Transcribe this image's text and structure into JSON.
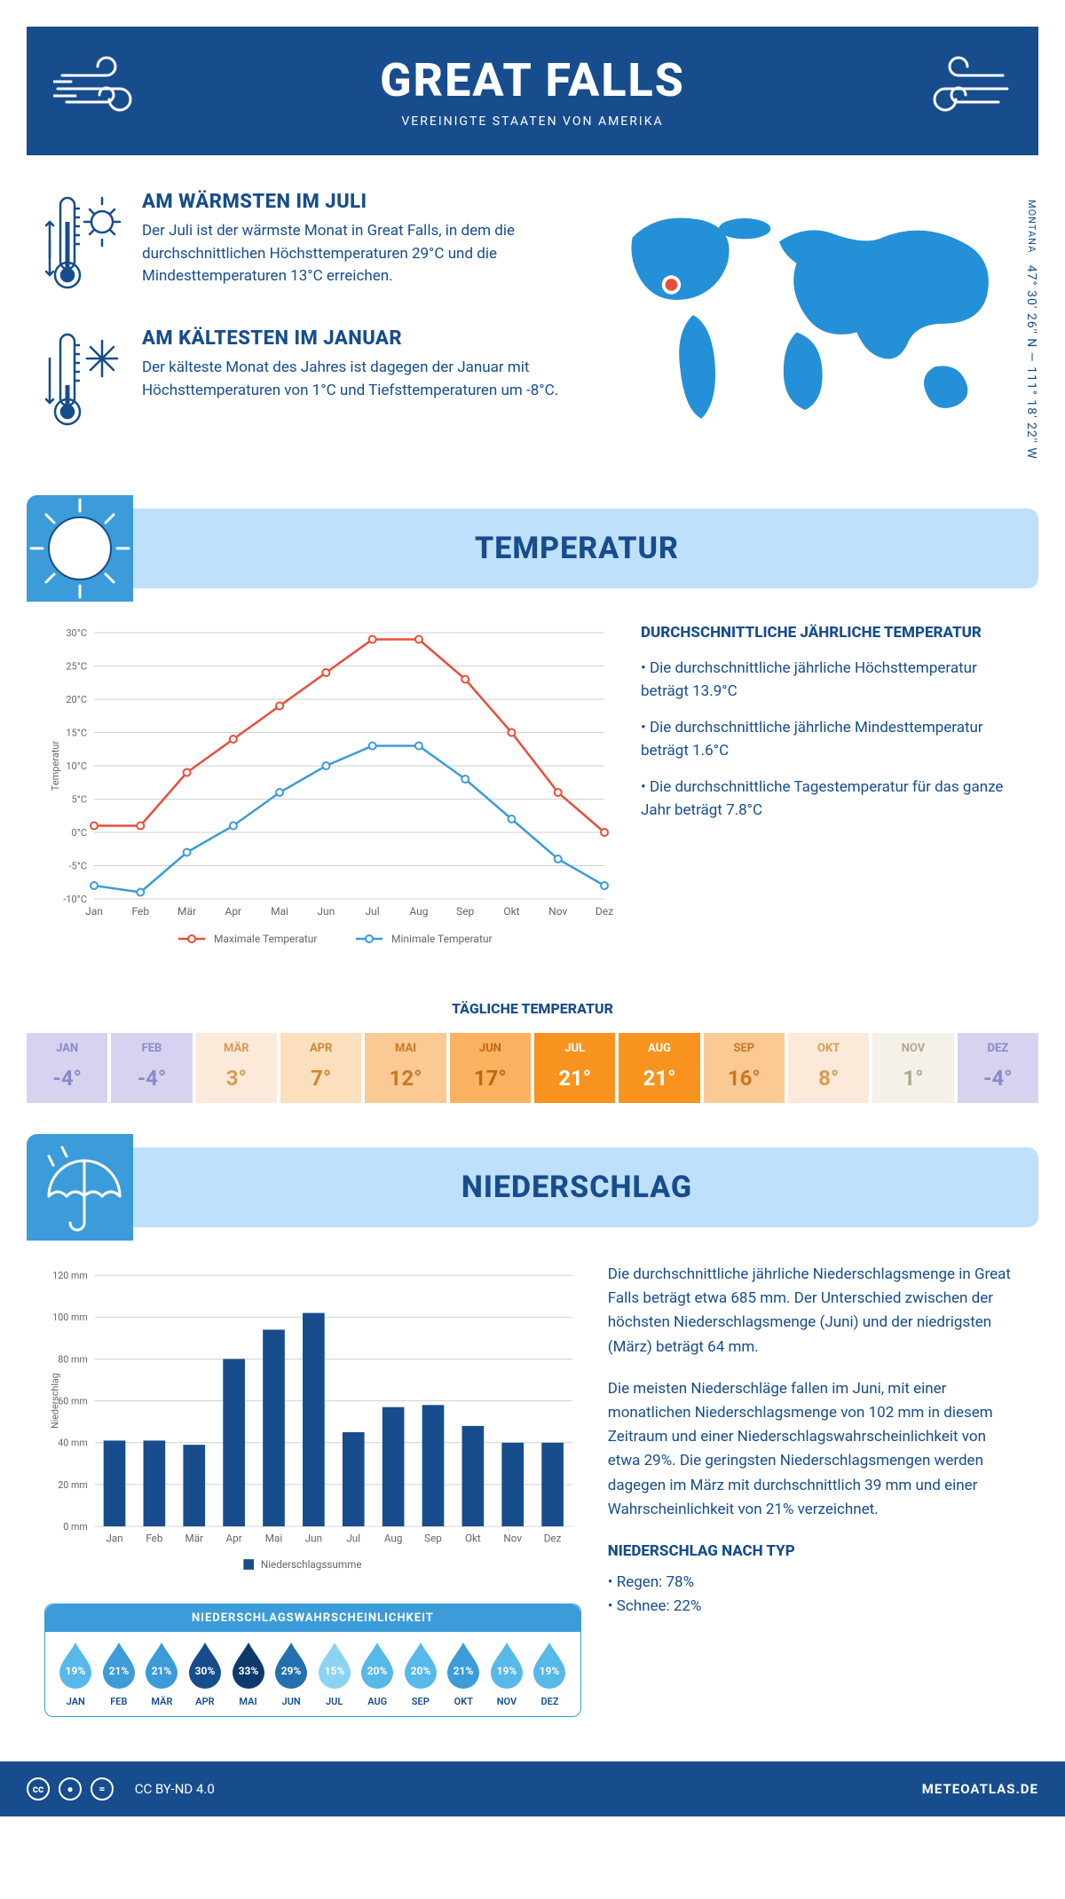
{
  "header": {
    "title": "GREAT FALLS",
    "subtitle": "VEREINIGTE STAATEN VON AMERIKA"
  },
  "coords": {
    "lat": "47° 30' 26'' N",
    "lon": "111° 18' 22'' W",
    "region": "MONTANA"
  },
  "warmest": {
    "title": "AM WÄRMSTEN IM JULI",
    "text": "Der Juli ist der wärmste Monat in Great Falls, in dem die durchschnittlichen Höchsttemperaturen 29°C und die Mindesttemperaturen 13°C erreichen."
  },
  "coldest": {
    "title": "AM KÄLTESTEN IM JANUAR",
    "text": "Der kälteste Monat des Jahres ist dagegen der Januar mit Höchsttemperaturen von 1°C und Tiefsttemperaturen um -8°C."
  },
  "temperature": {
    "banner": "TEMPERATUR",
    "chart": {
      "type": "line",
      "months": [
        "Jan",
        "Feb",
        "Mär",
        "Apr",
        "Mai",
        "Jun",
        "Jul",
        "Aug",
        "Sep",
        "Okt",
        "Nov",
        "Dez"
      ],
      "max_series": {
        "label": "Maximale Temperatur",
        "color": "#e94e3a",
        "values": [
          1,
          1,
          9,
          14,
          19,
          24,
          29,
          29,
          23,
          15,
          6,
          0
        ]
      },
      "min_series": {
        "label": "Minimale Temperatur",
        "color": "#3b9cd9",
        "values": [
          -8,
          -9,
          -3,
          1,
          6,
          10,
          13,
          13,
          8,
          2,
          -4,
          -8
        ]
      },
      "ylim": [
        -10,
        30
      ],
      "ytick_step": 5,
      "ylabel": "Temperatur",
      "grid_color": "#d0d0d0",
      "background": "#ffffff"
    },
    "sidebar": {
      "title": "DURCHSCHNITTLICHE JÄHRLICHE TEMPERATUR",
      "b1": "• Die durchschnittliche jährliche Höchsttemperatur beträgt 13.9°C",
      "b2": "• Die durchschnittliche jährliche Mindesttemperatur beträgt 1.6°C",
      "b3": "• Die durchschnittliche Tagestemperatur für das ganze Jahr beträgt 7.8°C"
    },
    "daily": {
      "title": "TÄGLICHE TEMPERATUR",
      "months": [
        "JAN",
        "FEB",
        "MÄR",
        "APR",
        "MAI",
        "JUN",
        "JUL",
        "AUG",
        "SEP",
        "OKT",
        "NOV",
        "DEZ"
      ],
      "values": [
        "-4°",
        "-4°",
        "3°",
        "7°",
        "12°",
        "17°",
        "21°",
        "21°",
        "16°",
        "8°",
        "1°",
        "-4°"
      ],
      "bg_colors": [
        "#d5d3f0",
        "#d5d3f0",
        "#fbead9",
        "#fcdfbd",
        "#fbc994",
        "#fab260",
        "#f7931e",
        "#f7931e",
        "#fbc994",
        "#fbead9",
        "#f5f0e8",
        "#d5d3f0"
      ],
      "fg_colors": [
        "#8d88c7",
        "#8d88c7",
        "#d99a55",
        "#d18535",
        "#cc7722",
        "#c06615",
        "#ffffff",
        "#ffffff",
        "#cc7722",
        "#d99a55",
        "#b0a890",
        "#8d88c7"
      ]
    }
  },
  "precip": {
    "banner": "NIEDERSCHLAG",
    "chart": {
      "type": "bar",
      "months": [
        "Jan",
        "Feb",
        "Mär",
        "Apr",
        "Mai",
        "Jun",
        "Jul",
        "Aug",
        "Sep",
        "Okt",
        "Nov",
        "Dez"
      ],
      "values": [
        41,
        41,
        39,
        80,
        94,
        102,
        45,
        57,
        58,
        48,
        40,
        40
      ],
      "ylim": [
        0,
        120
      ],
      "ytick_step": 20,
      "ylabel": "Niederschlag",
      "bar_color": "#174d8c",
      "grid_color": "#d0d0d0",
      "legend": "Niederschlagssumme"
    },
    "text": {
      "p1": "Die durchschnittliche jährliche Niederschlagsmenge in Great Falls beträgt etwa 685 mm. Der Unterschied zwischen der höchsten Niederschlagsmenge (Juni) und der niedrigsten (März) beträgt 64 mm.",
      "p2": "Die meisten Niederschläge fallen im Juni, mit einer monatlichen Niederschlagsmenge von 102 mm in diesem Zeitraum und einer Niederschlagswahrscheinlichkeit von etwa 29%. Die geringsten Niederschlagsmengen werden dagegen im März mit durchschnittlich 39 mm und einer Wahrscheinlichkeit von 21% verzeichnet.",
      "type_title": "NIEDERSCHLAG NACH TYP",
      "type_rain": "• Regen: 78%",
      "type_snow": "• Schnee: 22%"
    },
    "probability": {
      "title": "NIEDERSCHLAGSWAHRSCHEINLICHKEIT",
      "months": [
        "JAN",
        "FEB",
        "MÄR",
        "APR",
        "MAI",
        "JUN",
        "JUL",
        "AUG",
        "SEP",
        "OKT",
        "NOV",
        "DEZ"
      ],
      "values": [
        "19%",
        "21%",
        "21%",
        "30%",
        "33%",
        "29%",
        "15%",
        "20%",
        "20%",
        "21%",
        "19%",
        "19%"
      ],
      "colors": [
        "#57b8ea",
        "#3b9cd9",
        "#3b9cd9",
        "#174d8c",
        "#0e3a6b",
        "#2270b0",
        "#8cd3f3",
        "#57b8ea",
        "#57b8ea",
        "#3b9cd9",
        "#57b8ea",
        "#57b8ea"
      ]
    }
  },
  "footer": {
    "license": "CC BY-ND 4.0",
    "site": "METEOATLAS.DE"
  }
}
